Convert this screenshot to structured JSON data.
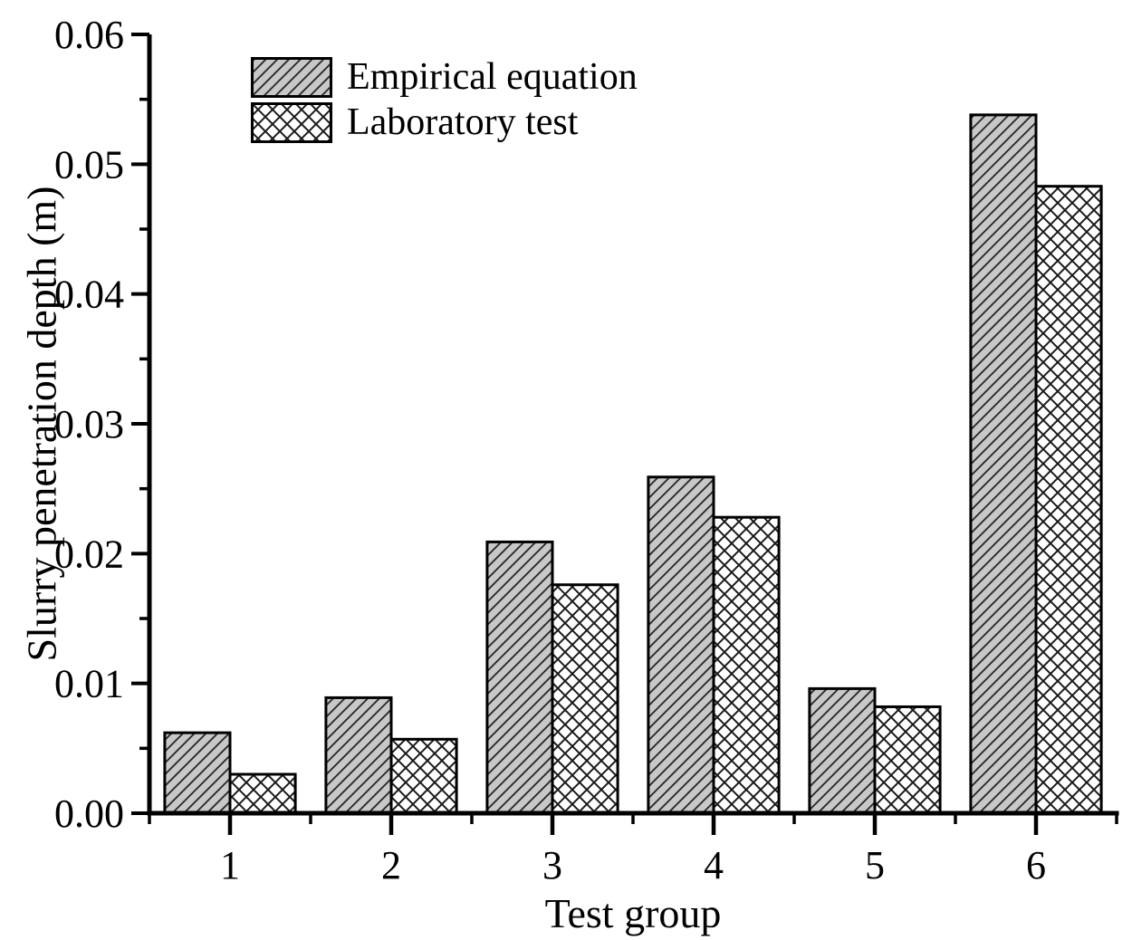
{
  "figure": {
    "background_color": "#ffffff",
    "axis_color": "#000000",
    "text_color": "#000000"
  },
  "chart_data": {
    "type": "bar",
    "title": "",
    "xlabel": "Test group",
    "ylabel": "Slurry penetration depth (m)",
    "categories": [
      "1",
      "2",
      "3",
      "4",
      "5",
      "6"
    ],
    "series": [
      {
        "name": "Empirical equation",
        "pattern": "diagonal-hatch",
        "fill": "#c8c8c8",
        "values": [
          0.0062,
          0.0089,
          0.0209,
          0.0259,
          0.0096,
          0.0538
        ]
      },
      {
        "name": "Laboratory test",
        "pattern": "cross-hatch",
        "fill": "#ffffff",
        "values": [
          0.003,
          0.0057,
          0.0176,
          0.0228,
          0.0082,
          0.0483
        ]
      }
    ],
    "ylim": [
      0,
      0.06
    ],
    "ytick_step": 0.01,
    "ytick_minor_step": 0.005,
    "yticks": [
      "0.00",
      "0.01",
      "0.02",
      "0.03",
      "0.04",
      "0.05",
      "0.06"
    ],
    "xticks": [
      "1",
      "2",
      "3",
      "4",
      "5",
      "6"
    ],
    "xlim_units": [
      0.5,
      6.5
    ],
    "bar_width_units": 0.405,
    "grid": false,
    "legend_position": "top-left-inside",
    "hatch_line_color": "#1a1a1a",
    "bar_outline_color": "#000000"
  }
}
